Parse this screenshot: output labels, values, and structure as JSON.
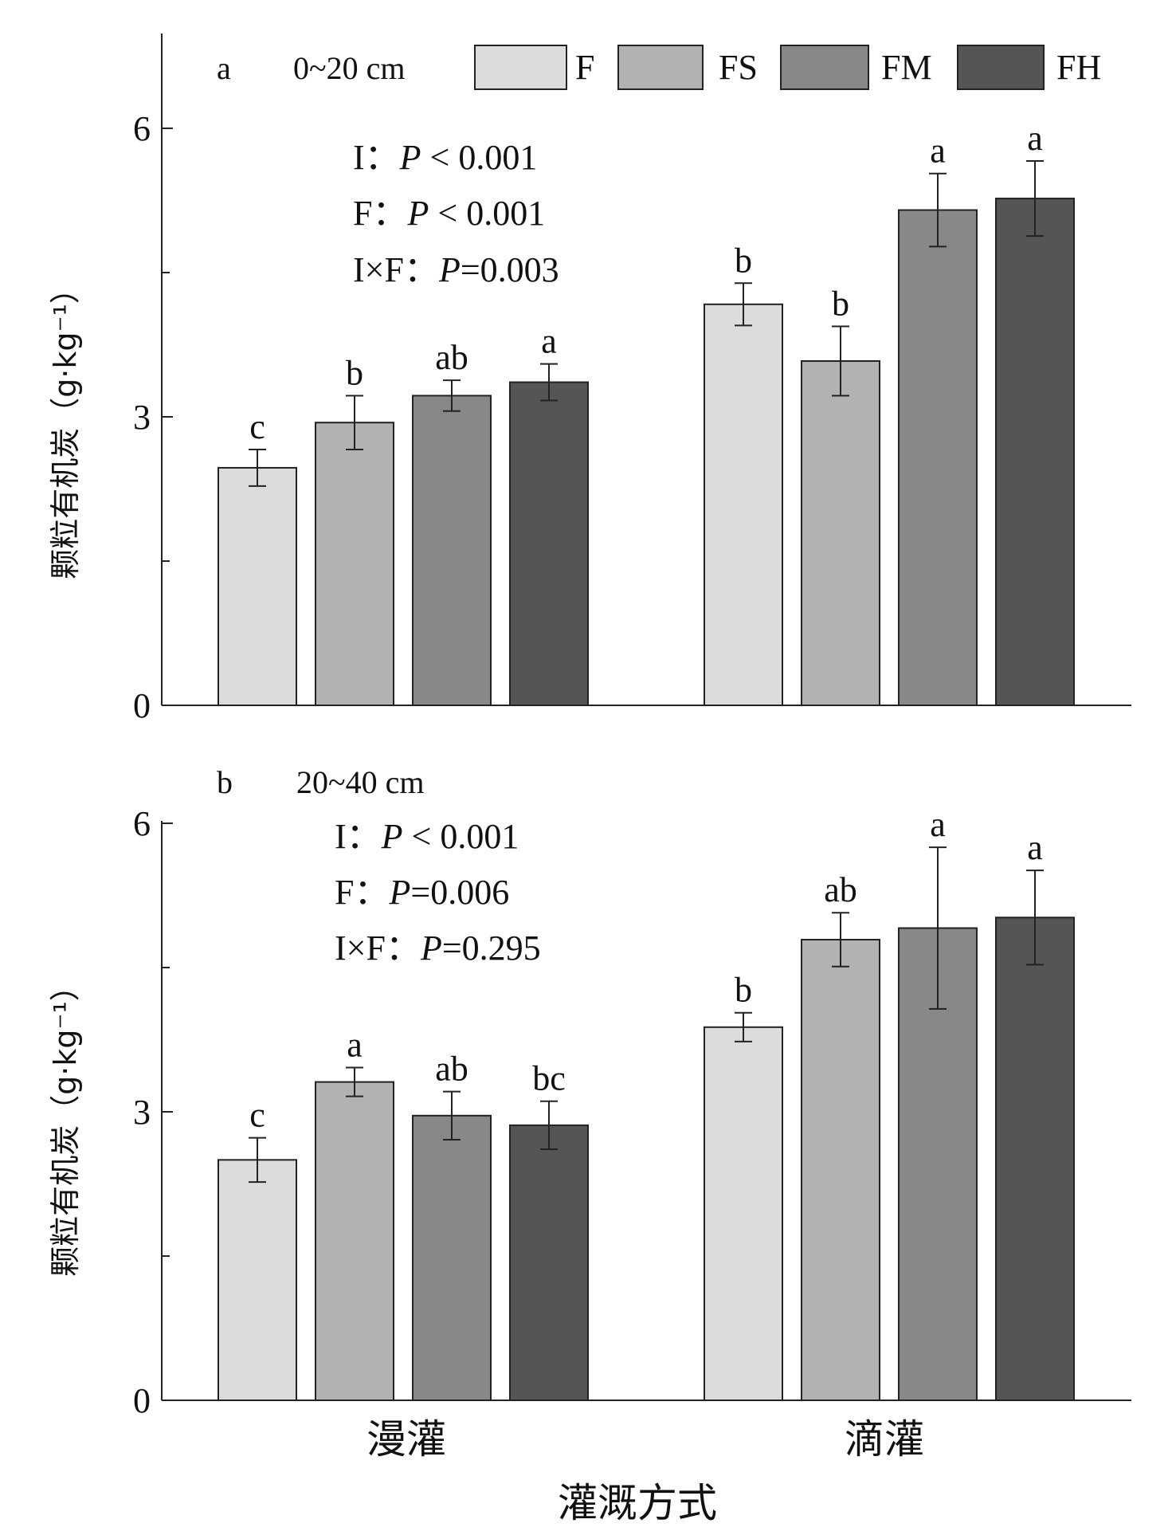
{
  "legend": {
    "items": [
      {
        "label": "F",
        "color": "#dcdcdc"
      },
      {
        "label": "FS",
        "color": "#b2b2b2"
      },
      {
        "label": "FM",
        "color": "#888888"
      },
      {
        "label": "FH",
        "color": "#555555"
      }
    ]
  },
  "xaxis_title": "灌溉方式",
  "chart_data": [
    {
      "type": "bar",
      "panel": "a",
      "depth": "0~20 cm",
      "ylabel": "颗粒有机炭（g·kg⁻¹）",
      "ylim": [
        0,
        7
      ],
      "yticks": [
        0,
        3,
        6
      ],
      "categories": [
        "漫灌",
        "滴灌"
      ],
      "stats": [
        {
          "term": "I：",
          "p": "P",
          "rel": " < 0.001"
        },
        {
          "term": "F：",
          "p": "P",
          "rel": " < 0.001"
        },
        {
          "term": "I×F：",
          "p": "P",
          "rel": "=0.003"
        }
      ],
      "series": [
        {
          "name": "F",
          "values": [
            2.47,
            4.17
          ],
          "errors": [
            0.19,
            0.22
          ],
          "letters": [
            "c",
            "b"
          ]
        },
        {
          "name": "FS",
          "values": [
            2.94,
            3.58
          ],
          "errors": [
            0.28,
            0.36
          ],
          "letters": [
            "b",
            "b"
          ]
        },
        {
          "name": "FM",
          "values": [
            3.22,
            5.15
          ],
          "errors": [
            0.16,
            0.38
          ],
          "letters": [
            "ab",
            "a"
          ]
        },
        {
          "name": "FH",
          "values": [
            3.36,
            5.27
          ],
          "errors": [
            0.19,
            0.39
          ],
          "letters": [
            "a",
            "a"
          ]
        }
      ]
    },
    {
      "type": "bar",
      "panel": "b",
      "depth": "20~40 cm",
      "ylabel": "颗粒有机炭（g·kg⁻¹）",
      "ylim": [
        0,
        6
      ],
      "yticks": [
        0,
        3,
        6
      ],
      "categories": [
        "漫灌",
        "滴灌"
      ],
      "stats": [
        {
          "term": "I：",
          "p": "P",
          "rel": " < 0.001"
        },
        {
          "term": "F：",
          "p": "P",
          "rel": "=0.006"
        },
        {
          "term": "I×F：",
          "p": "P",
          "rel": "=0.295"
        }
      ],
      "series": [
        {
          "name": "F",
          "values": [
            2.5,
            3.88
          ],
          "errors": [
            0.23,
            0.15
          ],
          "letters": [
            "c",
            "b"
          ]
        },
        {
          "name": "FS",
          "values": [
            3.31,
            4.79
          ],
          "errors": [
            0.15,
            0.28
          ],
          "letters": [
            "a",
            "ab"
          ]
        },
        {
          "name": "FM",
          "values": [
            2.96,
            4.91
          ],
          "errors": [
            0.25,
            0.84
          ],
          "letters": [
            "ab",
            "a"
          ]
        },
        {
          "name": "FH",
          "values": [
            2.86,
            5.02
          ],
          "errors": [
            0.25,
            0.49
          ],
          "letters": [
            "bc",
            "a"
          ]
        }
      ]
    }
  ]
}
